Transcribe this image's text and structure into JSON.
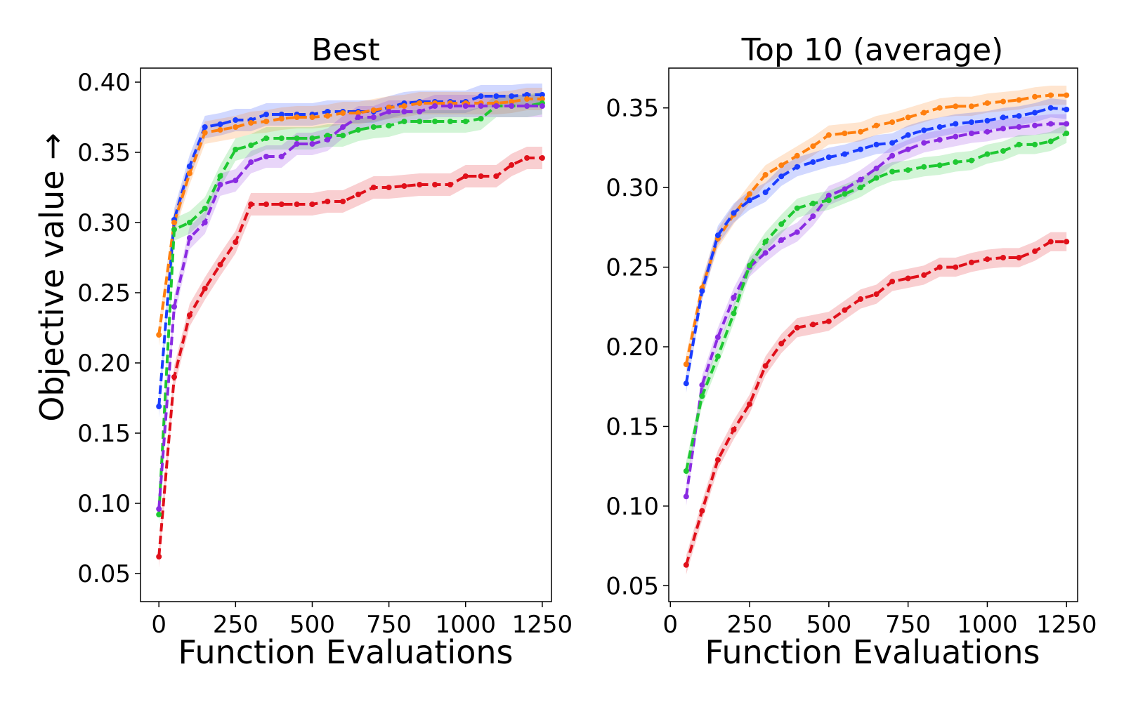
{
  "figure": {
    "ylabel": "Objective value →"
  },
  "chart_data": [
    {
      "type": "line",
      "title": "Best",
      "xlabel": "Function Evaluations",
      "ylabel": "Objective value →",
      "xlim": [
        -60,
        1280
      ],
      "ylim": [
        0.03,
        0.41
      ],
      "xticks": [
        0,
        250,
        500,
        750,
        1000,
        1250
      ],
      "yticks": [
        0.05,
        0.1,
        0.15,
        0.2,
        0.25,
        0.3,
        0.35,
        0.4
      ],
      "band": 0.008,
      "series": [
        {
          "name": "blue",
          "color": "#1a3cff",
          "dash": "12,6",
          "x": [
            0,
            50,
            100,
            150,
            200,
            250,
            300,
            350,
            400,
            450,
            500,
            550,
            600,
            650,
            700,
            750,
            800,
            850,
            900,
            950,
            1000,
            1050,
            1100,
            1150,
            1200,
            1250
          ],
          "y": [
            0.169,
            0.302,
            0.34,
            0.368,
            0.37,
            0.373,
            0.373,
            0.377,
            0.377,
            0.377,
            0.377,
            0.379,
            0.379,
            0.379,
            0.379,
            0.382,
            0.385,
            0.386,
            0.386,
            0.386,
            0.386,
            0.39,
            0.39,
            0.39,
            0.391,
            0.391
          ]
        },
        {
          "name": "orange",
          "color": "#ff7f0e",
          "dash": "12,6",
          "x": [
            0,
            50,
            100,
            150,
            200,
            250,
            300,
            350,
            400,
            450,
            500,
            550,
            600,
            650,
            700,
            750,
            800,
            850,
            900,
            950,
            1000,
            1050,
            1100,
            1150,
            1200,
            1250
          ],
          "y": [
            0.22,
            0.3,
            0.335,
            0.364,
            0.366,
            0.368,
            0.371,
            0.372,
            0.374,
            0.375,
            0.375,
            0.376,
            0.378,
            0.378,
            0.38,
            0.382,
            0.383,
            0.385,
            0.385,
            0.385,
            0.385,
            0.385,
            0.385,
            0.386,
            0.388,
            0.388
          ]
        },
        {
          "name": "green",
          "color": "#1ec832",
          "dash": "12,6",
          "x": [
            0,
            50,
            100,
            150,
            200,
            250,
            300,
            350,
            400,
            450,
            500,
            550,
            600,
            650,
            700,
            750,
            800,
            850,
            900,
            950,
            1000,
            1050,
            1100,
            1150,
            1200,
            1250
          ],
          "y": [
            0.092,
            0.295,
            0.3,
            0.31,
            0.333,
            0.352,
            0.355,
            0.36,
            0.36,
            0.36,
            0.36,
            0.362,
            0.362,
            0.366,
            0.368,
            0.369,
            0.372,
            0.372,
            0.372,
            0.372,
            0.372,
            0.374,
            0.383,
            0.383,
            0.383,
            0.385
          ]
        },
        {
          "name": "purple",
          "color": "#8a2be2",
          "dash": "12,6",
          "x": [
            0,
            50,
            100,
            150,
            200,
            250,
            300,
            350,
            400,
            450,
            500,
            550,
            600,
            650,
            700,
            750,
            800,
            850,
            900,
            950,
            1000,
            1050,
            1100,
            1150,
            1200,
            1250
          ],
          "y": [
            0.096,
            0.24,
            0.289,
            0.3,
            0.327,
            0.33,
            0.343,
            0.347,
            0.347,
            0.356,
            0.356,
            0.359,
            0.368,
            0.375,
            0.375,
            0.379,
            0.379,
            0.379,
            0.383,
            0.383,
            0.383,
            0.383,
            0.383,
            0.383,
            0.383,
            0.383
          ]
        },
        {
          "name": "red",
          "color": "#e0101a",
          "dash": "12,6",
          "x": [
            0,
            50,
            100,
            150,
            200,
            250,
            300,
            350,
            400,
            450,
            500,
            550,
            600,
            650,
            700,
            750,
            800,
            850,
            900,
            950,
            1000,
            1050,
            1100,
            1150,
            1200,
            1250
          ],
          "y": [
            0.062,
            0.19,
            0.234,
            0.253,
            0.27,
            0.286,
            0.313,
            0.313,
            0.313,
            0.313,
            0.313,
            0.315,
            0.315,
            0.32,
            0.325,
            0.325,
            0.326,
            0.327,
            0.327,
            0.327,
            0.333,
            0.333,
            0.333,
            0.341,
            0.346,
            0.346
          ]
        }
      ]
    },
    {
      "type": "line",
      "title": "Top 10 (average)",
      "xlabel": "Function Evaluations",
      "ylabel": "",
      "xlim": [
        -5,
        1285
      ],
      "ylim": [
        0.04,
        0.375
      ],
      "xticks": [
        0,
        250,
        500,
        750,
        1000,
        1250
      ],
      "yticks": [
        0.05,
        0.1,
        0.15,
        0.2,
        0.25,
        0.3,
        0.35
      ],
      "band": 0.006,
      "series": [
        {
          "name": "orange",
          "color": "#ff7f0e",
          "dash": "12,6",
          "x": [
            50,
            100,
            150,
            200,
            250,
            300,
            350,
            400,
            450,
            500,
            550,
            600,
            650,
            700,
            750,
            800,
            850,
            900,
            950,
            1000,
            1050,
            1100,
            1150,
            1200,
            1250
          ],
          "y": [
            0.189,
            0.237,
            0.268,
            0.283,
            0.296,
            0.308,
            0.314,
            0.32,
            0.326,
            0.333,
            0.334,
            0.335,
            0.339,
            0.341,
            0.344,
            0.347,
            0.35,
            0.351,
            0.351,
            0.353,
            0.354,
            0.355,
            0.357,
            0.358,
            0.358
          ]
        },
        {
          "name": "blue",
          "color": "#1a3cff",
          "dash": "12,6",
          "x": [
            50,
            100,
            150,
            200,
            250,
            300,
            350,
            400,
            450,
            500,
            550,
            600,
            650,
            700,
            750,
            800,
            850,
            900,
            950,
            1000,
            1050,
            1100,
            1150,
            1200,
            1250
          ],
          "y": [
            0.177,
            0.235,
            0.27,
            0.284,
            0.292,
            0.297,
            0.307,
            0.313,
            0.316,
            0.319,
            0.321,
            0.324,
            0.327,
            0.328,
            0.333,
            0.336,
            0.338,
            0.34,
            0.341,
            0.342,
            0.344,
            0.345,
            0.347,
            0.35,
            0.349
          ]
        },
        {
          "name": "purple",
          "color": "#8a2be2",
          "dash": "12,6",
          "x": [
            50,
            100,
            150,
            200,
            250,
            300,
            350,
            400,
            450,
            500,
            550,
            600,
            650,
            700,
            750,
            800,
            850,
            900,
            950,
            1000,
            1050,
            1100,
            1150,
            1200,
            1250
          ],
          "y": [
            0.106,
            0.176,
            0.206,
            0.231,
            0.25,
            0.259,
            0.267,
            0.272,
            0.282,
            0.295,
            0.299,
            0.305,
            0.312,
            0.32,
            0.324,
            0.328,
            0.33,
            0.332,
            0.334,
            0.335,
            0.337,
            0.338,
            0.339,
            0.34,
            0.34
          ]
        },
        {
          "name": "green",
          "color": "#1ec832",
          "dash": "12,6",
          "x": [
            50,
            100,
            150,
            200,
            250,
            300,
            350,
            400,
            450,
            500,
            550,
            600,
            650,
            700,
            750,
            800,
            850,
            900,
            950,
            1000,
            1050,
            1100,
            1150,
            1200,
            1250
          ],
          "y": [
            0.122,
            0.169,
            0.194,
            0.221,
            0.251,
            0.266,
            0.277,
            0.287,
            0.29,
            0.292,
            0.296,
            0.3,
            0.306,
            0.31,
            0.311,
            0.313,
            0.314,
            0.316,
            0.317,
            0.321,
            0.323,
            0.327,
            0.327,
            0.329,
            0.334
          ]
        },
        {
          "name": "red",
          "color": "#e0101a",
          "dash": "12,6",
          "x": [
            50,
            100,
            150,
            200,
            250,
            300,
            350,
            400,
            450,
            500,
            550,
            600,
            650,
            700,
            750,
            800,
            850,
            900,
            950,
            1000,
            1050,
            1100,
            1150,
            1200,
            1250
          ],
          "y": [
            0.063,
            0.097,
            0.129,
            0.148,
            0.164,
            0.188,
            0.202,
            0.212,
            0.214,
            0.216,
            0.223,
            0.23,
            0.233,
            0.241,
            0.243,
            0.245,
            0.25,
            0.25,
            0.253,
            0.255,
            0.256,
            0.256,
            0.26,
            0.266,
            0.266
          ]
        }
      ]
    }
  ]
}
